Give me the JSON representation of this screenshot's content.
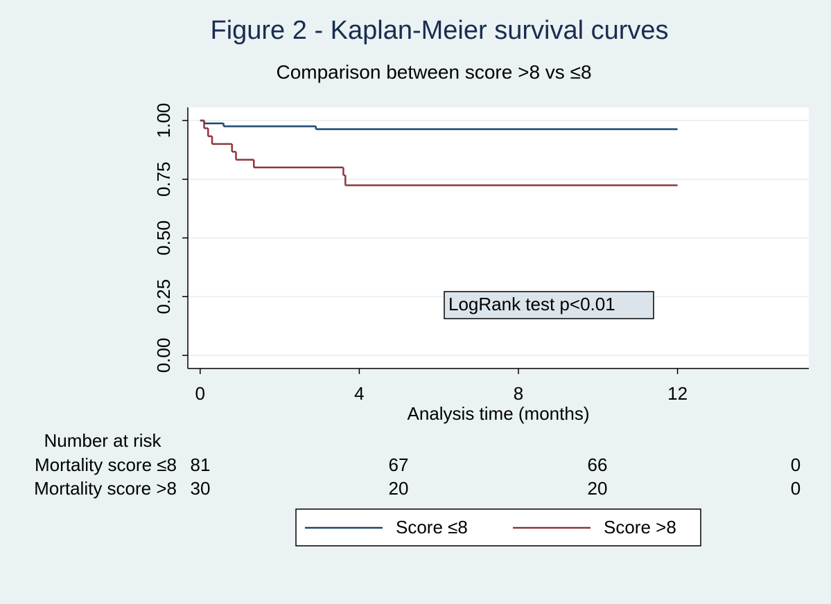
{
  "chart_data": {
    "type": "step",
    "title": "Figure 2 - Kaplan-Meier survival curves",
    "subtitle": "Comparison between score >8 vs ≤8",
    "x_label": "Analysis time (months)",
    "xlim": [
      -0.31,
      15.3
    ],
    "ylim": [
      -0.056,
      1.056
    ],
    "xticks": [
      0,
      4,
      8,
      12
    ],
    "yticks": [
      {
        "value": 0,
        "label": "0.00"
      },
      {
        "value": 0.25,
        "label": "0.25"
      },
      {
        "value": 0.5,
        "label": "0.50"
      },
      {
        "value": 0.75,
        "label": "0.75"
      },
      {
        "value": 1,
        "label": "1.00"
      }
    ],
    "grid": true,
    "series": [
      {
        "name": "Score ≤8",
        "color": "#1a476f",
        "x": [
          0,
          0.1,
          0.59,
          2.91,
          12
        ],
        "values": [
          1,
          0.9877,
          0.9753,
          0.963,
          0.963
        ]
      },
      {
        "name": "Score >8",
        "color": "#90353b",
        "x": [
          0,
          0.1,
          0.2,
          0.3,
          0.8,
          0.9,
          1.35,
          3.6,
          3.65,
          12
        ],
        "values": [
          1,
          0.967,
          0.933,
          0.9,
          0.867,
          0.833,
          0.8,
          0.767,
          0.724,
          0.724
        ]
      }
    ],
    "annotation": "LogRank test p<0.01",
    "risk_table": {
      "title": "Number at risk",
      "rows": [
        {
          "label": "Mortality score ≤8",
          "values": [
            81,
            67,
            66,
            0
          ]
        },
        {
          "label": "Mortality score >8",
          "values": [
            30,
            20,
            20,
            0
          ]
        }
      ]
    }
  }
}
